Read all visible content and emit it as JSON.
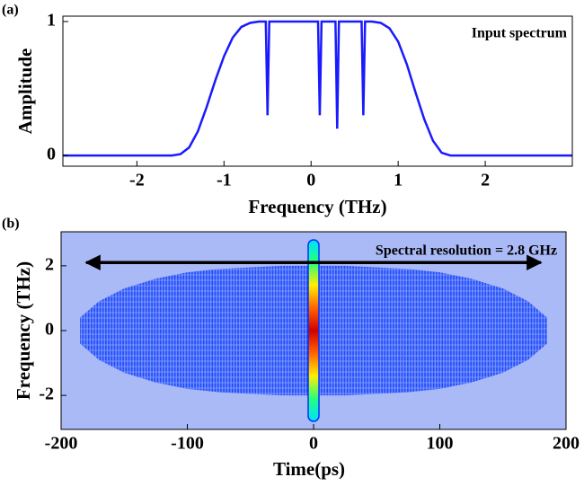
{
  "chart_data": [
    {
      "type": "line",
      "panel_label": "(a)",
      "annotation": "Input spectrum",
      "xlabel": "Frequency (THz)",
      "ylabel": "Amplitude",
      "xlim": [
        -2.85,
        3
      ],
      "ylim": [
        -0.08,
        1.04
      ],
      "xticks": [
        -2,
        -1,
        0,
        1,
        2
      ],
      "yticks": [
        0,
        1
      ],
      "color": "#1a1aff",
      "x": [
        -2.85,
        -2,
        -1.6,
        -1.5,
        -1.4,
        -1.3,
        -1.2,
        -1.1,
        -1,
        -0.9,
        -0.8,
        -0.7,
        -0.6,
        -0.52,
        -0.5,
        -0.48,
        0.08,
        0.1,
        0.12,
        0.28,
        0.3,
        0.32,
        0.58,
        0.6,
        0.62,
        0.7,
        0.8,
        0.9,
        1,
        1.1,
        1.2,
        1.3,
        1.4,
        1.5,
        1.6,
        2,
        3
      ],
      "values": [
        0,
        0,
        0,
        0.01,
        0.06,
        0.18,
        0.36,
        0.56,
        0.74,
        0.88,
        0.96,
        0.99,
        1,
        1,
        0.3,
        1,
        1,
        0.3,
        1,
        1,
        0.2,
        1,
        1,
        0.3,
        1,
        1,
        0.99,
        0.95,
        0.85,
        0.68,
        0.47,
        0.27,
        0.11,
        0.02,
        0,
        0,
        0
      ]
    },
    {
      "type": "spectrogram",
      "panel_label": "(b)",
      "annotation": "Spectral resolution = 2.8 GHz",
      "xlabel": "Time(ps)",
      "ylabel": "Frequency (THz)",
      "xlim": [
        -200,
        200
      ],
      "ylim": [
        -3.05,
        3.05
      ],
      "xticks": [
        -200,
        -100,
        0,
        100,
        200
      ],
      "yticks": [
        -2,
        0,
        2
      ],
      "background": "#aabaf6",
      "color": "#1040ff",
      "envelope": {
        "x": [
          -185,
          -170,
          -150,
          -125,
          -100,
          -75,
          -50,
          -25,
          0,
          25,
          50,
          75,
          100,
          125,
          150,
          170,
          185
        ],
        "values": [
          0.4,
          0.9,
          1.3,
          1.6,
          1.8,
          1.9,
          1.95,
          2,
          2,
          2,
          1.95,
          1.9,
          1.8,
          1.6,
          1.3,
          0.9,
          0.4
        ]
      },
      "ridge": {
        "x": 0,
        "halfwidth": 2.8
      },
      "arrow": {
        "x": [
          -180,
          180
        ],
        "y": 2.1
      }
    }
  ]
}
